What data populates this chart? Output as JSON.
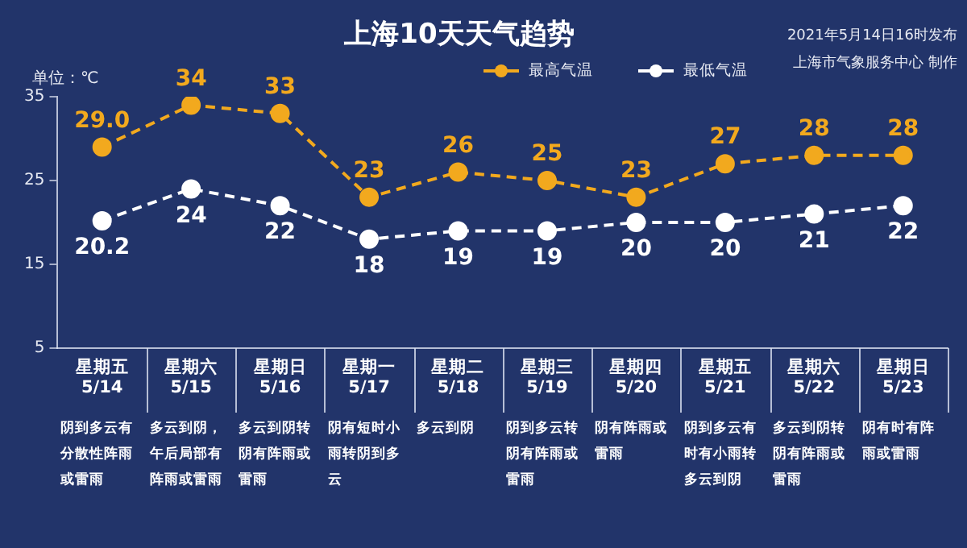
{
  "chart_data": {
    "type": "line",
    "title": "上海10天天气趋势",
    "ylabel": "单位：℃",
    "categories": [
      "星期五\n5/14",
      "星期六\n5/15",
      "星期日\n5/16",
      "星期一\n5/17",
      "星期二\n5/18",
      "星期三\n5/19",
      "星期四\n5/20",
      "星期五\n5/21",
      "星期六\n5/22",
      "星期日\n5/23"
    ],
    "series": [
      {
        "name": "最高气温",
        "color": "#f2a91e",
        "values": [
          29.0,
          34,
          33,
          23,
          26,
          25,
          23,
          27,
          28,
          28
        ],
        "value_labels": [
          "29.0",
          "34",
          "33",
          "23",
          "26",
          "25",
          "23",
          "27",
          "28",
          "28"
        ]
      },
      {
        "name": "最低气温",
        "color": "#ffffff",
        "values": [
          20.2,
          24,
          22,
          18,
          19,
          19,
          20,
          20,
          21,
          22
        ],
        "value_labels": [
          "20.2",
          "24",
          "22",
          "18",
          "19",
          "19",
          "20",
          "20",
          "21",
          "22"
        ]
      }
    ],
    "ylim": [
      5,
      35
    ],
    "yticks": [
      5,
      15,
      25,
      35
    ],
    "grid": false,
    "legend": "top right",
    "marker": "circle",
    "line_style": "dashed",
    "annotations": [
      "2021年5月14日16时发布",
      "上海市气象服务中心 制作",
      "阴到多云有分散性阵雨或雷雨",
      "多云到阴，午后局部有阵雨或雷雨",
      "多云到阴转阴有阵雨或雷雨",
      "阴有短时小雨转阴到多云",
      "多云到阴",
      "阴到多云转阴有阵雨或雷雨",
      "阴有阵雨或雷雨",
      "阴到多云有时有小雨转多云到阴",
      "多云到阴转阴有阵雨或雷雨",
      "阴有时有阵雨或雷雨"
    ]
  }
}
